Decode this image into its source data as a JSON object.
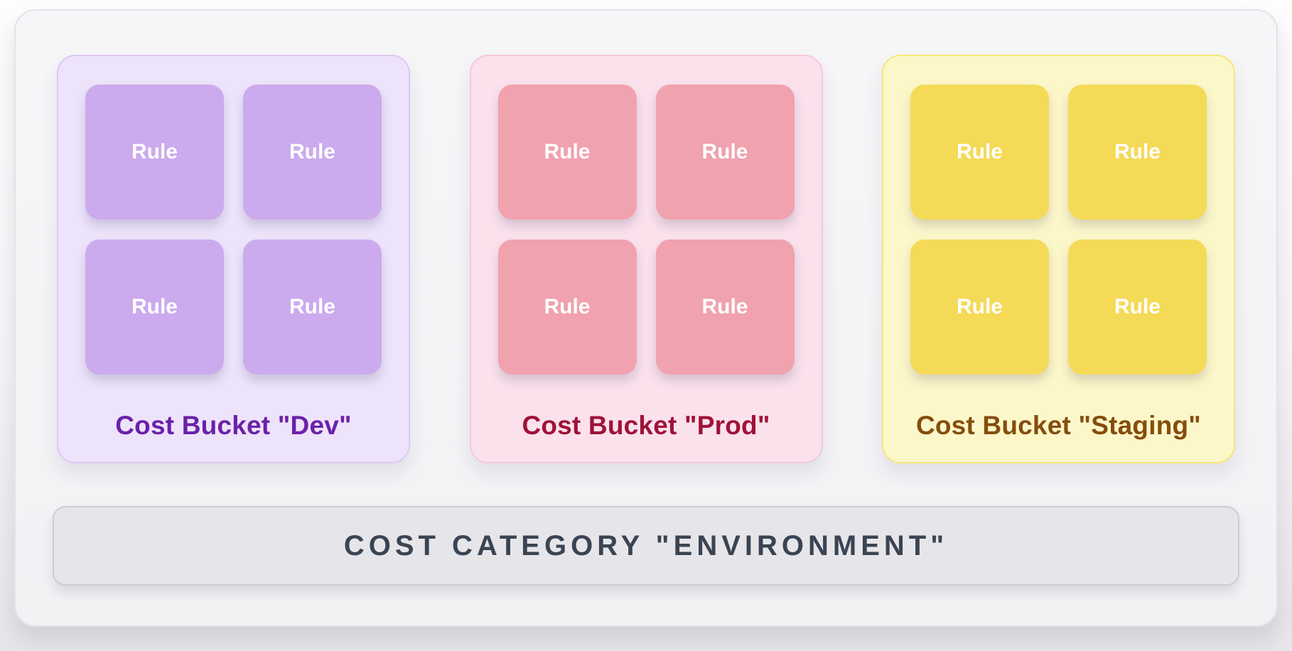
{
  "diagram": {
    "buckets": [
      {
        "id": "dev",
        "title": "Cost Bucket \"Dev\"",
        "rules": [
          "Rule",
          "Rule",
          "Rule",
          "Rule"
        ],
        "colors": {
          "bg": "#ede3fb",
          "border": "#ddc7f3",
          "tile": "#cbaaee",
          "title": "#6b21a8"
        }
      },
      {
        "id": "prod",
        "title": "Cost Bucket \"Prod\"",
        "rules": [
          "Rule",
          "Rule",
          "Rule",
          "Rule"
        ],
        "colors": {
          "bg": "#fae1ec",
          "border": "#f6c7da",
          "tile": "#f0a2ae",
          "title": "#9f1239"
        }
      },
      {
        "id": "staging",
        "title": "Cost Bucket \"Staging\"",
        "rules": [
          "Rule",
          "Rule",
          "Rule",
          "Rule"
        ],
        "colors": {
          "bg": "#fcf7c9",
          "border": "#f5e778",
          "tile": "#f5da58",
          "title": "#854d0e"
        }
      }
    ],
    "category_bar": {
      "label": "COST CATEGORY \"ENVIRONMENT\"",
      "colors": {
        "bg": "#e6e6ea",
        "border": "#cbcdd4",
        "text": "#3a4453"
      }
    }
  }
}
